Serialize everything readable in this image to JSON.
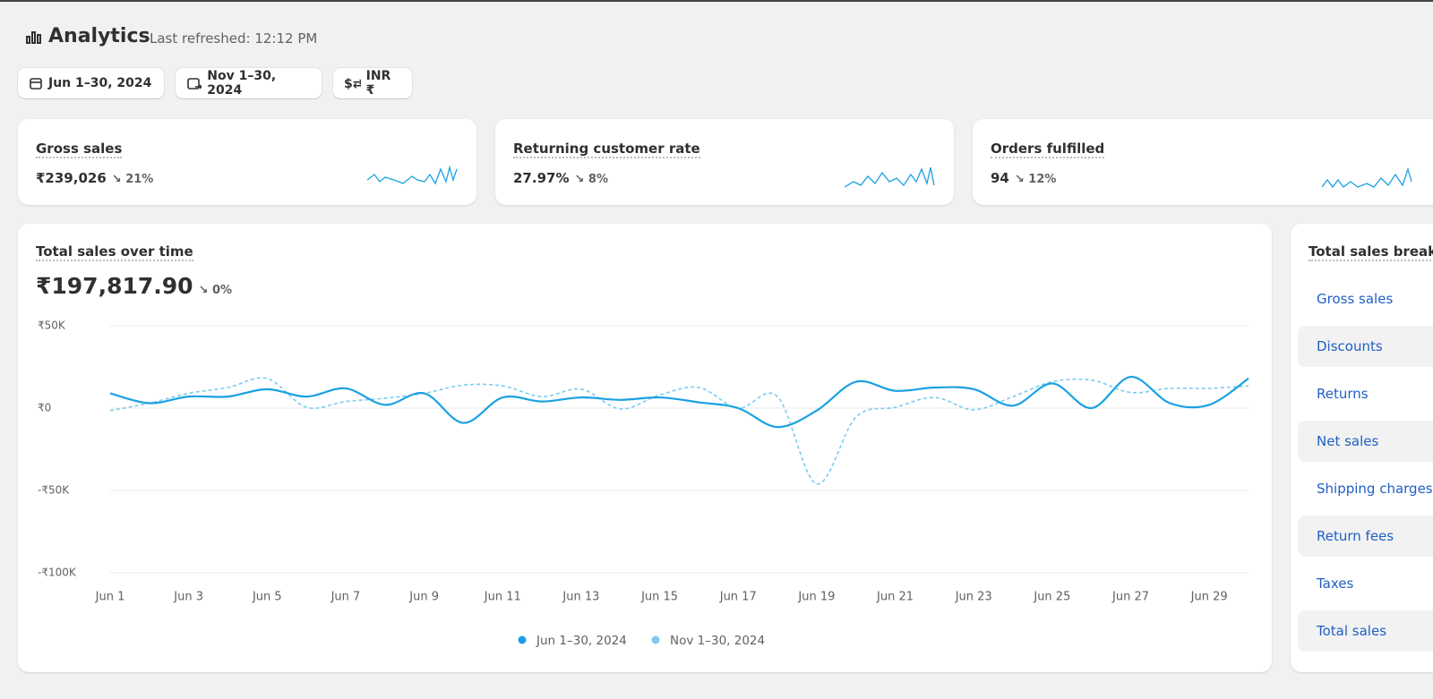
{
  "header": {
    "title": "Analytics",
    "subtitle": "Last refreshed: 12:12 PM"
  },
  "filters": [
    "Jun 1–30, 2024",
    "Nov 1–30, 2024",
    "INR ₹"
  ],
  "metrics": [
    {
      "label": "Gross sales",
      "value": "₹239,026",
      "change": "21%"
    },
    {
      "label": "Returning customer rate",
      "value": "27.97%",
      "change": "8%"
    },
    {
      "label": "Orders fulfilled",
      "value": "94",
      "change": "12%"
    }
  ],
  "sales_card": {
    "title": "Total sales over time",
    "value": "₹197,817.90",
    "change": "0%"
  },
  "chart_data": {
    "type": "line",
    "categories": [
      "Jun 1",
      null,
      "Jun 3",
      null,
      "Jun 5",
      null,
      "Jun 7",
      null,
      "Jun 9",
      null,
      "Jun 11",
      null,
      "Jun 13",
      null,
      "Jun 15",
      null,
      "Jun 17",
      null,
      "Jun 19",
      null,
      "Jun 21",
      null,
      "Jun 23",
      null,
      "Jun 25",
      null,
      "Jun 27",
      null,
      "Jun 29",
      null
    ],
    "series": [
      {
        "name": "Jun 1–30, 2024",
        "color": "#1ba1e2",
        "dashed": false,
        "values": [
          9000,
          3000,
          7000,
          7000,
          11500,
          7000,
          12000,
          2000,
          9000,
          -9000,
          6500,
          4000,
          6500,
          5000,
          6500,
          3500,
          0,
          -11500,
          -1500,
          16000,
          10500,
          12500,
          11500,
          1500,
          15000,
          0,
          19000,
          3000,
          2000,
          18000
        ]
      },
      {
        "name": "Nov 1–30, 2024",
        "color": "#7ccbee",
        "dashed": true,
        "values": [
          -1500,
          3000,
          9000,
          12500,
          18000,
          500,
          4000,
          6000,
          9000,
          14000,
          13500,
          7000,
          11500,
          -500,
          8000,
          12500,
          0,
          7000,
          -46000,
          -5500,
          500,
          6500,
          -1000,
          7000,
          16000,
          17000,
          9500,
          12000,
          12000,
          13500
        ]
      }
    ],
    "ylim": [
      -100000,
      50000
    ],
    "yticks": [
      {
        "value": 50000,
        "label": "₹50K"
      },
      {
        "value": 0,
        "label": "₹0"
      },
      {
        "value": -50000,
        "label": "-₹50K"
      },
      {
        "value": -100000,
        "label": "-₹100K"
      }
    ],
    "grid": true
  },
  "breakdown": {
    "title": "Total sales breakdown",
    "rows": [
      "Gross sales",
      "Discounts",
      "Returns",
      "Net sales",
      "Shipping charges",
      "Return fees",
      "Taxes",
      "Total sales"
    ]
  }
}
